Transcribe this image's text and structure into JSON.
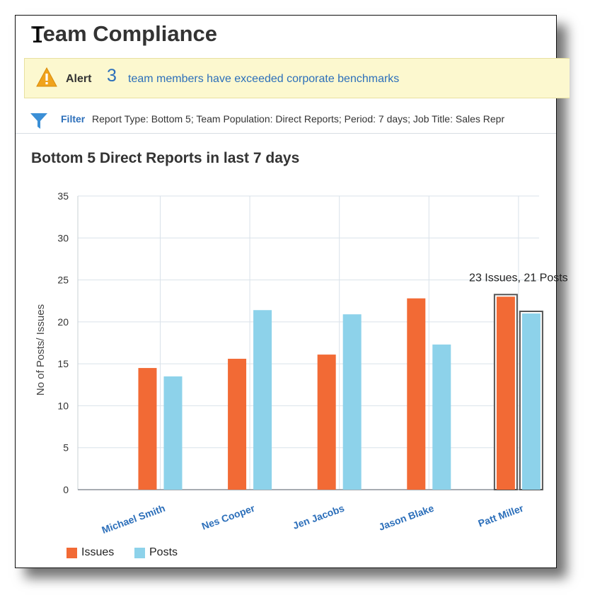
{
  "page": {
    "title": "Team Compliance"
  },
  "alert": {
    "label": "Alert",
    "count": "3",
    "message": "team members have exceeded corporate benchmarks",
    "icon": "warning-icon"
  },
  "filter": {
    "label": "Filter",
    "text": "Report Type: Bottom 5; Team Population: Direct Reports; Period: 7 days; Job Title: Sales Repr",
    "icon": "funnel-icon"
  },
  "chart_data": {
    "type": "bar",
    "title": "Bottom 5 Direct Reports in last 7 days",
    "ylabel": "No of Posts/ Issues",
    "xlabel": "",
    "ylim": [
      0,
      35
    ],
    "yticks": [
      0,
      5,
      10,
      15,
      20,
      25,
      30,
      35
    ],
    "grid": true,
    "categories": [
      "Michael Smith",
      "Nes Cooper",
      "Jen Jacobs",
      "Jason Blake",
      "Patt Miller"
    ],
    "series": [
      {
        "name": "Issues",
        "color": "#f26a35",
        "values": [
          14.5,
          15.6,
          16.1,
          22.8,
          23
        ]
      },
      {
        "name": "Posts",
        "color": "#8dd2ea",
        "values": [
          13.5,
          21.4,
          20.9,
          17.3,
          21
        ]
      }
    ],
    "highlighted_category": "Patt Miller",
    "tooltip": "23 Issues, 21 Posts",
    "legend_position": "bottom-left"
  },
  "colors": {
    "link": "#2c6fba",
    "alert_bg": "#fcf8cf",
    "issues": "#f26a35",
    "posts": "#8dd2ea"
  }
}
